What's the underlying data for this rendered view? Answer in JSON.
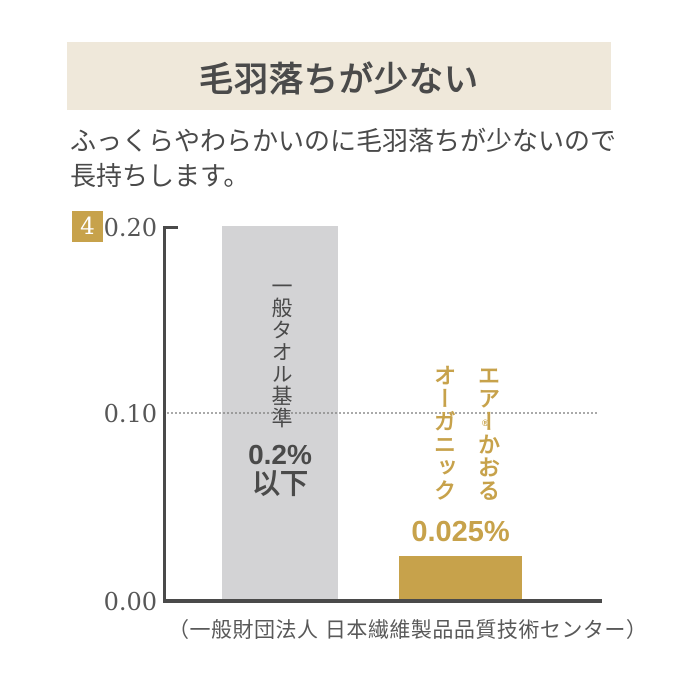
{
  "header": {
    "title": "毛羽落ちが少ない",
    "background_color": "#EFE8DA"
  },
  "description": {
    "line1": "ふっくらやわらかいのに毛羽落ちが少ないので",
    "line2": "長持ちします。"
  },
  "section_badge": {
    "number": "4",
    "color": "#C7A24B"
  },
  "chart_data": {
    "type": "bar",
    "title": "毛羽落ちが少ない",
    "categories": [
      "一般タオル基準",
      "エアーかおるオーガニック"
    ],
    "values": [
      0.2,
      0.025
    ],
    "value_labels": [
      "0.2%以下",
      "0.025%"
    ],
    "bar_colors": [
      "#D3D3D5",
      "#C7A24B"
    ],
    "ylim": [
      0,
      0.2
    ],
    "ytick_labels": [
      "0.20",
      "0.10",
      "0.00"
    ],
    "gridline": {
      "y": 0.1,
      "style": "dotted"
    },
    "legend": "none",
    "source": "（一般財団法人 日本繊維製品品質技術センター）"
  },
  "bar_generic": {
    "label": "一般タオル基準",
    "value_top": "0.2%",
    "value_bottom": "以下"
  },
  "bar_organic": {
    "label_col_right": "エアーかおる",
    "label_col_left": "オーガニック",
    "registered_mark": "®",
    "value": "0.025%"
  }
}
